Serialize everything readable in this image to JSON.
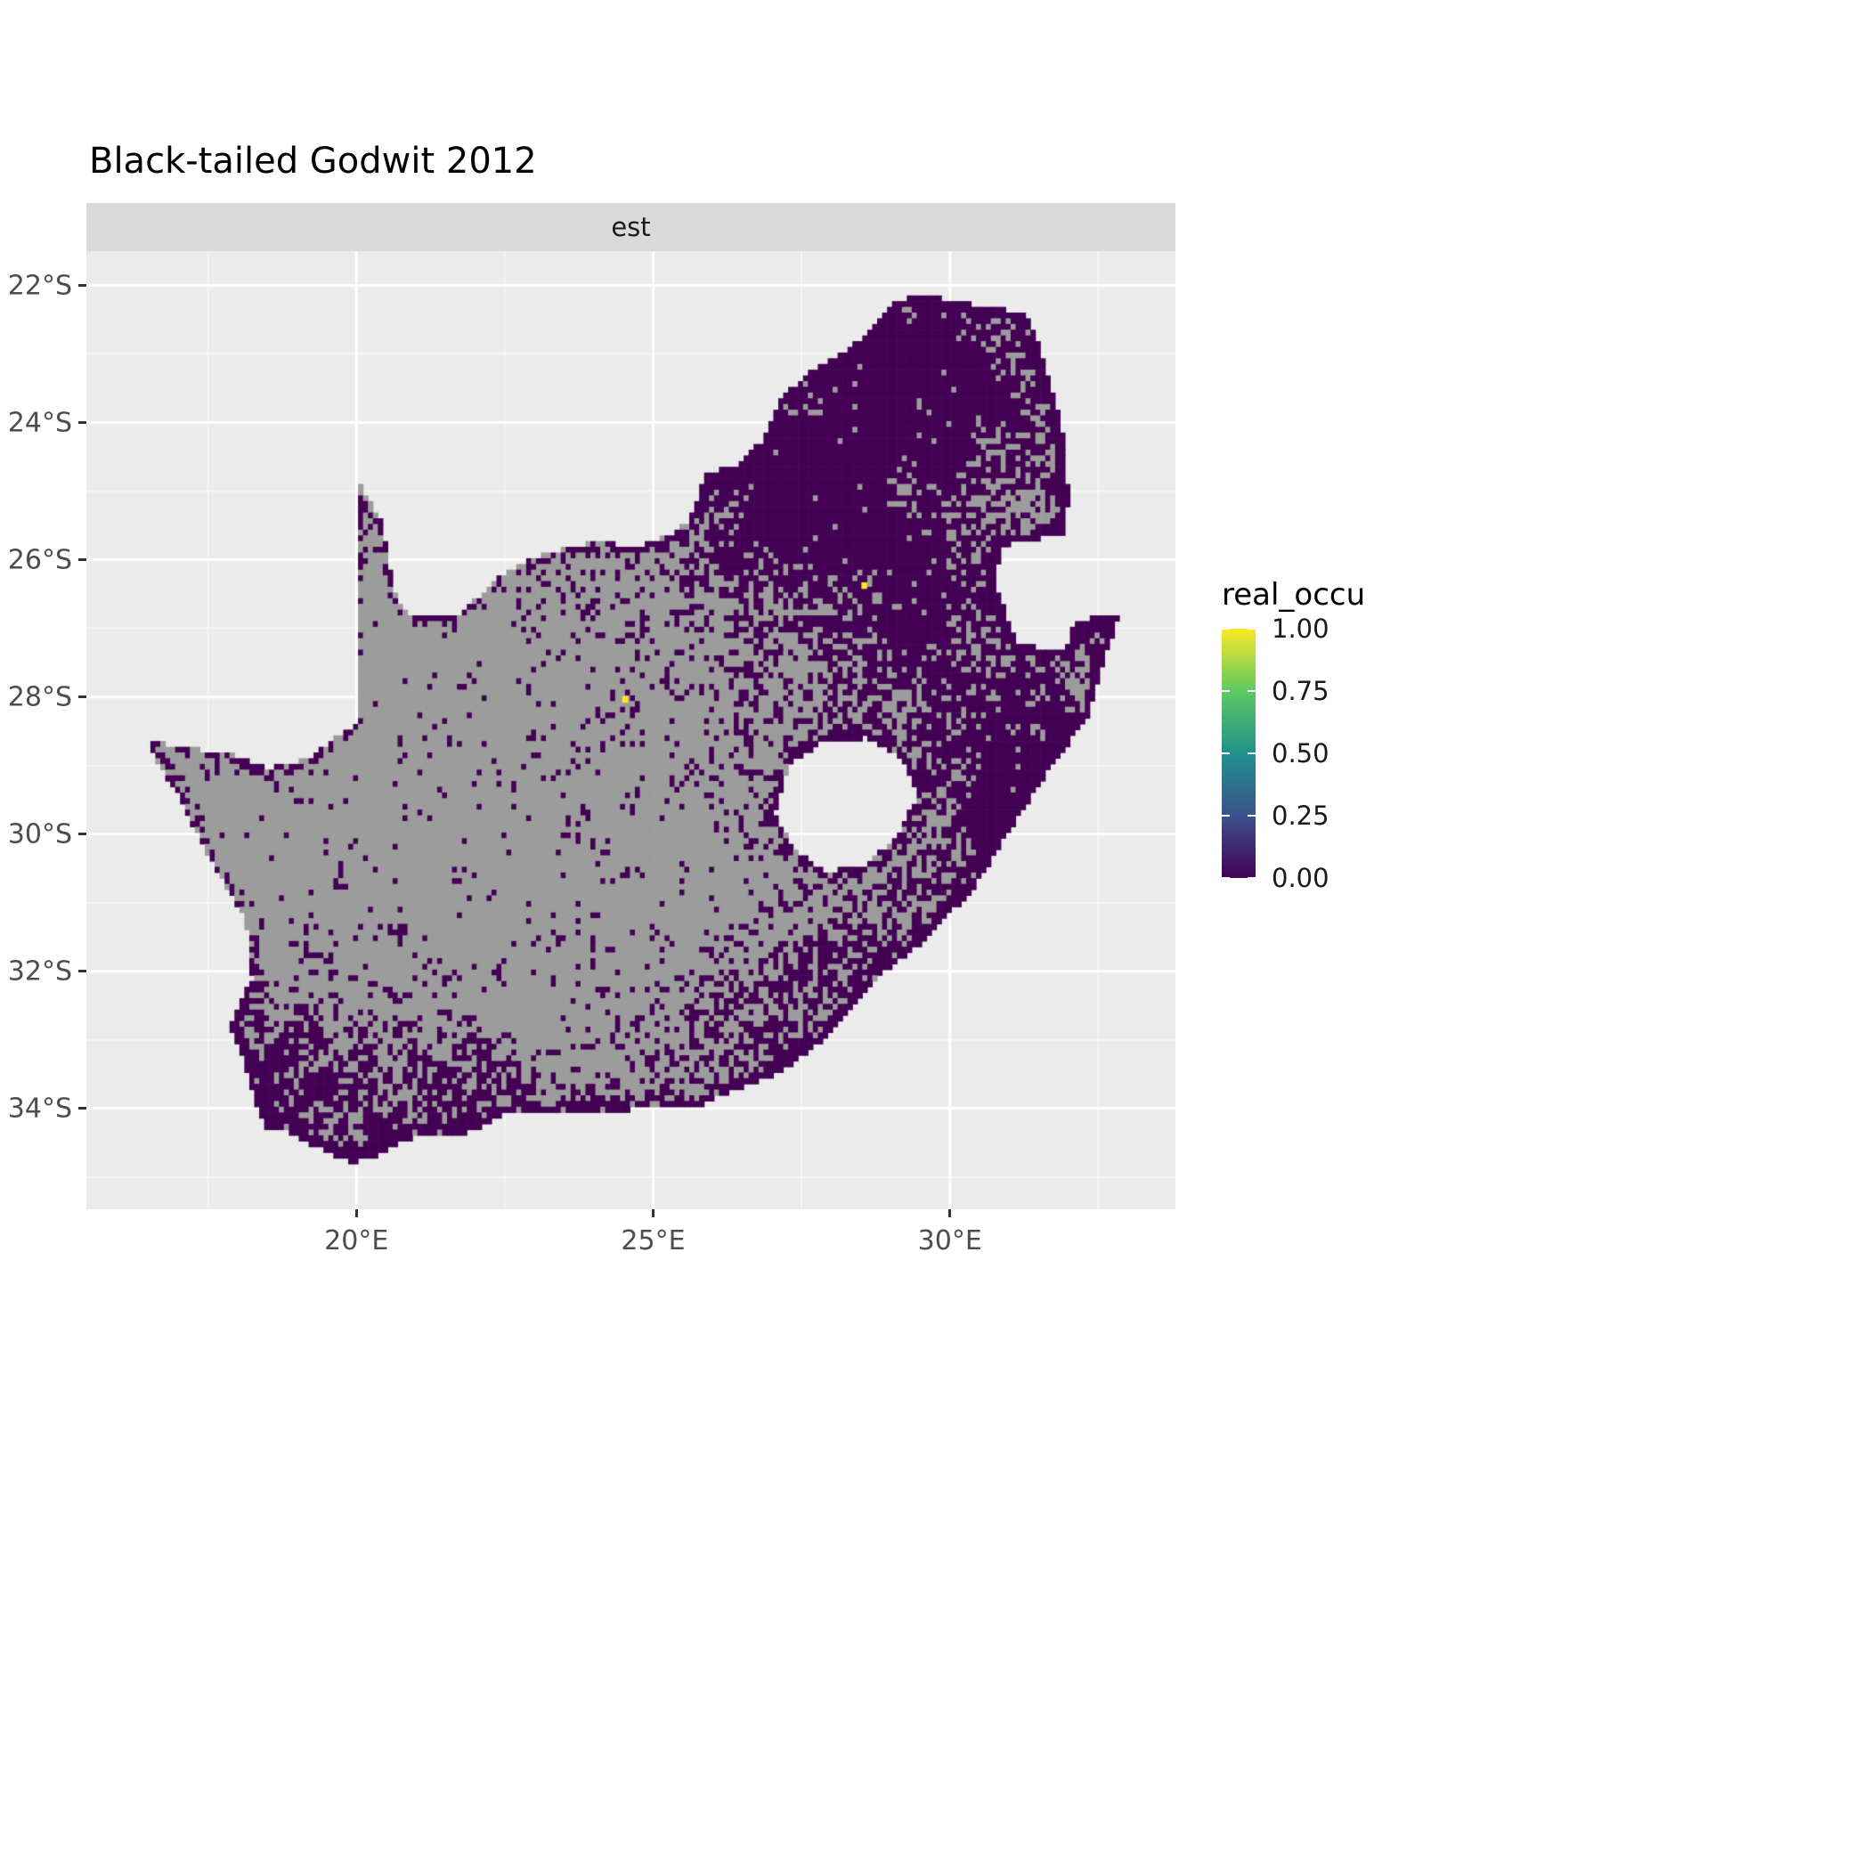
{
  "title": "Black-tailed Godwit 2012",
  "facet_label": "est",
  "legend": {
    "title": "real_occu",
    "tick_labels": [
      "1.00",
      "0.75",
      "0.50",
      "0.25",
      "0.00"
    ],
    "tick_values": [
      1.0,
      0.75,
      0.5,
      0.25,
      0.0
    ],
    "viridis_stops": [
      "#440154",
      "#3B528B",
      "#21918C",
      "#5EC962",
      "#FDE725"
    ]
  },
  "chart_data": {
    "type": "heatmap",
    "title": "Black-tailed Godwit 2012",
    "facet": "est",
    "variable": "real_occu",
    "legend_position": "right",
    "grid": true,
    "x_axis": {
      "tick_labels": [
        "20°E",
        "25°E",
        "30°E"
      ],
      "ticks": [
        20,
        25,
        30
      ],
      "minor": [
        17.5,
        22.5,
        27.5,
        32.5
      ],
      "range": [
        15.45,
        33.8
      ]
    },
    "y_axis": {
      "tick_labels": [
        "22°S",
        "24°S",
        "26°S",
        "28°S",
        "30°S",
        "32°S",
        "34°S"
      ],
      "ticks": [
        -22,
        -24,
        -26,
        -28,
        -30,
        -32,
        -34
      ],
      "minor": [
        -23,
        -25,
        -27,
        -29,
        -31,
        -33,
        -35
      ],
      "range": [
        -35.47,
        -21.5
      ]
    },
    "value_range": [
      0.0,
      1.0
    ],
    "cell_size_deg": 0.0833,
    "colors": {
      "zero": "#440154",
      "one": "#FDE725",
      "na": "#9C9C9C",
      "panel": "#EBEBEB",
      "strip": "#D9D9D9",
      "grid_major": "#FFFFFF",
      "grid_minor": "rgba(255,255,255,0.55)"
    },
    "high_cells": [
      {
        "lon": 28.55,
        "lat": -26.37,
        "value": 1.0
      },
      {
        "lon": 24.52,
        "lat": -28.03,
        "value": 1.0
      }
    ],
    "region_outline": [
      [
        16.45,
        -28.6
      ],
      [
        17.0,
        -28.75
      ],
      [
        17.8,
        -28.8
      ],
      [
        18.5,
        -29.05
      ],
      [
        19.2,
        -28.9
      ],
      [
        19.7,
        -28.55
      ],
      [
        20.0,
        -28.4
      ],
      [
        20.0,
        -24.77
      ],
      [
        20.45,
        -25.5
      ],
      [
        20.63,
        -26.45
      ],
      [
        20.85,
        -26.8
      ],
      [
        21.7,
        -26.85
      ],
      [
        22.4,
        -26.25
      ],
      [
        22.9,
        -26.0
      ],
      [
        23.5,
        -25.85
      ],
      [
        24.0,
        -25.75
      ],
      [
        24.75,
        -25.8
      ],
      [
        25.35,
        -25.6
      ],
      [
        25.6,
        -25.45
      ],
      [
        25.9,
        -24.75
      ],
      [
        26.45,
        -24.6
      ],
      [
        26.85,
        -24.25
      ],
      [
        27.15,
        -23.65
      ],
      [
        27.75,
        -23.2
      ],
      [
        28.3,
        -22.95
      ],
      [
        29.05,
        -22.25
      ],
      [
        29.45,
        -22.15
      ],
      [
        29.95,
        -22.2
      ],
      [
        30.5,
        -22.3
      ],
      [
        31.3,
        -22.4
      ],
      [
        31.55,
        -23.0
      ],
      [
        31.75,
        -23.6
      ],
      [
        31.95,
        -24.3
      ],
      [
        32.0,
        -25.1
      ],
      [
        31.95,
        -25.6
      ],
      [
        31.35,
        -25.72
      ],
      [
        30.85,
        -25.8
      ],
      [
        30.78,
        -26.35
      ],
      [
        30.95,
        -26.8
      ],
      [
        31.15,
        -27.2
      ],
      [
        31.6,
        -27.32
      ],
      [
        31.97,
        -27.3
      ],
      [
        32.1,
        -26.86
      ],
      [
        32.85,
        -26.85
      ],
      [
        32.55,
        -27.6
      ],
      [
        32.3,
        -28.35
      ],
      [
        31.8,
        -28.9
      ],
      [
        31.05,
        -29.9
      ],
      [
        30.35,
        -30.85
      ],
      [
        29.5,
        -31.6
      ],
      [
        28.7,
        -32.15
      ],
      [
        27.9,
        -33.0
      ],
      [
        27.1,
        -33.5
      ],
      [
        26.35,
        -33.75
      ],
      [
        25.65,
        -34.0
      ],
      [
        25.0,
        -33.95
      ],
      [
        24.2,
        -34.1
      ],
      [
        23.4,
        -34.1
      ],
      [
        22.6,
        -34.05
      ],
      [
        21.9,
        -34.35
      ],
      [
        21.0,
        -34.4
      ],
      [
        20.3,
        -34.7
      ],
      [
        19.95,
        -34.8
      ],
      [
        19.4,
        -34.6
      ],
      [
        18.85,
        -34.35
      ],
      [
        18.45,
        -34.3
      ],
      [
        18.3,
        -33.9
      ],
      [
        18.05,
        -33.2
      ],
      [
        17.85,
        -32.8
      ],
      [
        18.25,
        -32.1
      ],
      [
        18.15,
        -31.3
      ],
      [
        17.55,
        -30.4
      ],
      [
        17.0,
        -29.45
      ],
      [
        16.65,
        -28.95
      ]
    ],
    "holes": [
      [
        [
          27.05,
          -29.7
        ],
        [
          27.3,
          -29.0
        ],
        [
          27.85,
          -28.65
        ],
        [
          28.6,
          -28.6
        ],
        [
          29.25,
          -28.95
        ],
        [
          29.45,
          -29.45
        ],
        [
          29.15,
          -30.0
        ],
        [
          28.6,
          -30.45
        ],
        [
          27.9,
          -30.55
        ],
        [
          27.35,
          -30.2
        ]
      ]
    ],
    "occupancy_model": {
      "base": 0.3,
      "border_boost_1": 0.55,
      "border_boost_2": 0.22,
      "gaussians": [
        {
          "a": 0.62,
          "cx": 28.6,
          "cy": -25.2,
          "sx": 2.6,
          "sy": 1.9
        },
        {
          "a": 0.3,
          "cx": 29.9,
          "cy": -22.7,
          "sx": 1.6,
          "sy": 0.9
        },
        {
          "a": 0.5,
          "cx": 30.9,
          "cy": -29.2,
          "sx": 1.4,
          "sy": 1.9
        },
        {
          "a": 0.33,
          "cx": 28.6,
          "cy": -32.2,
          "sx": 1.9,
          "sy": 1.1
        },
        {
          "a": 0.55,
          "cx": 19.1,
          "cy": -33.9,
          "sx": 1.5,
          "sy": 1.1
        },
        {
          "a": 0.3,
          "cx": 23.5,
          "cy": -34.3,
          "sx": 3.0,
          "sy": 0.7
        },
        {
          "a": -0.42,
          "cx": 21.8,
          "cy": -30.3,
          "sx": 2.9,
          "sy": 2.3
        },
        {
          "a": -0.35,
          "cx": 22.3,
          "cy": -27.2,
          "sx": 2.4,
          "sy": 1.6
        },
        {
          "a": 0.2,
          "cx": 26.0,
          "cy": -28.6,
          "sx": 1.2,
          "sy": 0.9
        }
      ],
      "noise": [
        {
          "amp": 0.26,
          "freq": 0.55,
          "ox": 0,
          "oy": 0
        },
        {
          "amp": 0.18,
          "freq": 2.2,
          "ox": 37.7,
          "oy": 11.3
        }
      ]
    }
  }
}
